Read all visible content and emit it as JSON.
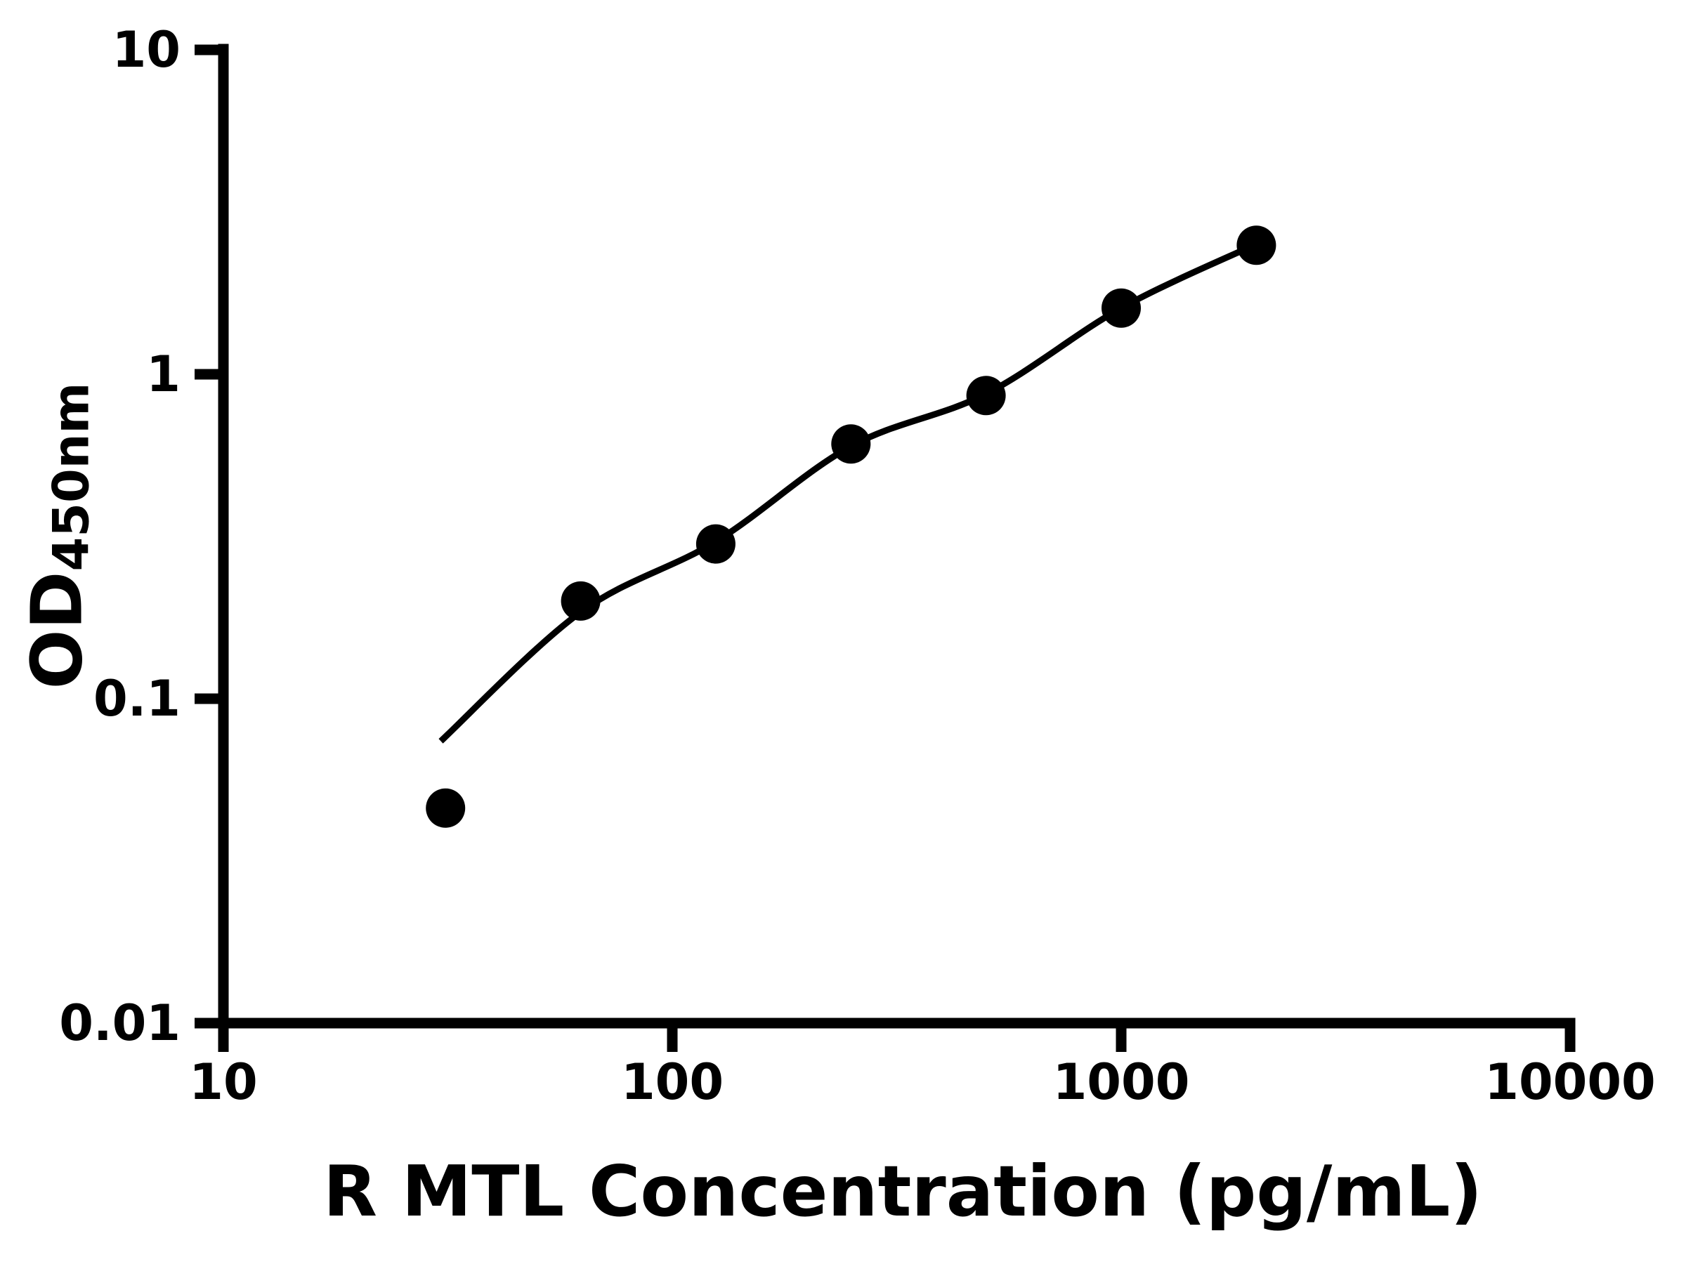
{
  "figure": {
    "background_color": "#ffffff",
    "ink_color": "#000000"
  },
  "chart_data": {
    "type": "scatter",
    "title": "",
    "xlabel": "R MTL Concentration (pg/mL)",
    "ylabel": "OD",
    "ylabel_subscript": "450nm",
    "x_scale": "log",
    "y_scale": "log",
    "xlim": [
      10,
      10000
    ],
    "ylim": [
      0.01,
      10
    ],
    "x_ticks": [
      10,
      100,
      1000,
      10000
    ],
    "x_tick_labels": [
      "10",
      "100",
      "1000",
      "10000"
    ],
    "y_ticks": [
      10,
      1,
      0.1,
      0.01
    ],
    "y_tick_labels": [
      "10",
      "1",
      "0.1",
      "0.01"
    ],
    "grid": false,
    "legend": "none",
    "series": [
      {
        "name": "standard-points",
        "type": "scatter",
        "marker": "circle",
        "color": "#000000",
        "x": [
          31.25,
          62.5,
          125,
          250,
          500,
          1000,
          2000
        ],
        "y": [
          0.046,
          0.2,
          0.3,
          0.61,
          0.86,
          1.6,
          2.5
        ]
      },
      {
        "name": "fit-curve",
        "type": "line",
        "color": "#000000",
        "x": [
          30.5,
          62.5,
          125,
          250,
          500,
          1000,
          2000
        ],
        "y": [
          0.074,
          0.185,
          0.305,
          0.6,
          0.87,
          1.6,
          2.52
        ]
      }
    ]
  }
}
